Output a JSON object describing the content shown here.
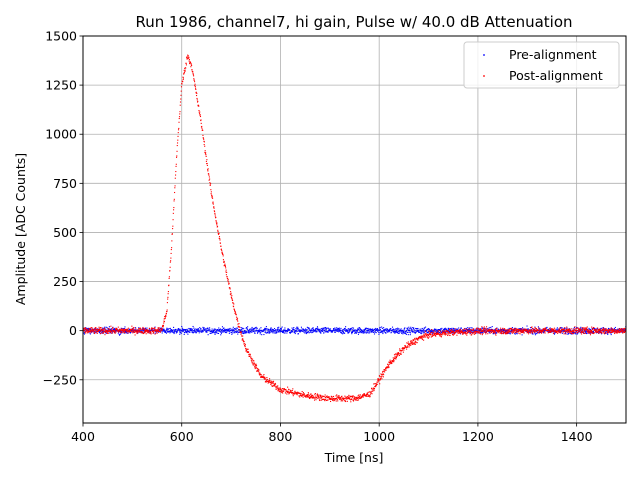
{
  "chart_data": {
    "type": "scatter",
    "title": "Run 1986, channel7, hi gain, Pulse w/ 40.0 dB Attenuation",
    "xlabel": "Time [ns]",
    "ylabel": "Amplitude [ADC Counts]",
    "xlim": [
      400,
      1500
    ],
    "ylim": [
      -470,
      1500
    ],
    "xticks": [
      400,
      600,
      800,
      1000,
      1200,
      1400
    ],
    "yticks": [
      -250,
      0,
      250,
      500,
      750,
      1000,
      1250,
      1500
    ],
    "ytick_labels": [
      "−250",
      "0",
      "250",
      "500",
      "750",
      "1000",
      "1250",
      "1500"
    ],
    "grid": true,
    "legend_position": "top-right",
    "series": [
      {
        "name": "Pre-alignment",
        "color": "#0000ff",
        "marker": "point",
        "description": "baseline pulses",
        "x": [
          400,
          600,
          800,
          1000,
          1200,
          1400,
          1500
        ],
        "y": [
          0,
          0,
          0,
          0,
          0,
          0,
          0
        ],
        "noise": 18
      },
      {
        "name": "Post-alignment",
        "color": "#ff0000",
        "marker": "point",
        "x": [
          400,
          550,
          560,
          570,
          580,
          590,
          600,
          612,
          620,
          640,
          660,
          680,
          700,
          715,
          730,
          760,
          800,
          850,
          900,
          950,
          980,
          1000,
          1020,
          1050,
          1080,
          1100,
          1150,
          1200,
          1300,
          1500
        ],
        "y": [
          0,
          0,
          5,
          100,
          450,
          900,
          1250,
          1400,
          1350,
          1050,
          700,
          420,
          180,
          30,
          -90,
          -230,
          -300,
          -330,
          -345,
          -345,
          -325,
          -250,
          -170,
          -90,
          -40,
          -20,
          -8,
          -2,
          0,
          0
        ],
        "noise": 18
      }
    ]
  }
}
